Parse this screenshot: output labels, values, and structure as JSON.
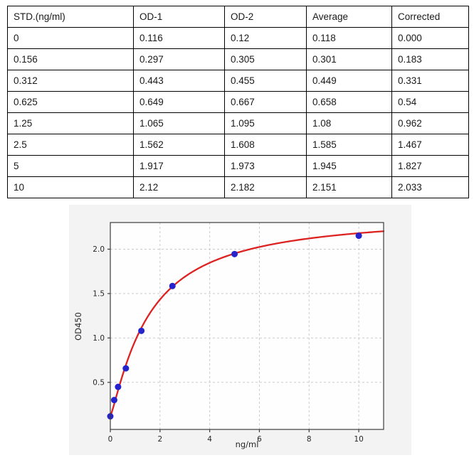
{
  "table": {
    "headers": [
      "STD.(ng/ml)",
      "OD-1",
      "OD-2",
      "Average",
      "Corrected"
    ],
    "rows": [
      [
        "0",
        "0.116",
        "0.12",
        "0.118",
        "0.000"
      ],
      [
        "0.156",
        "0.297",
        "0.305",
        "0.301",
        "0.183"
      ],
      [
        "0.312",
        "0.443",
        "0.455",
        "0.449",
        "0.331"
      ],
      [
        "0.625",
        "0.649",
        "0.667",
        "0.658",
        "0.54"
      ],
      [
        "1.25",
        "1.065",
        "1.095",
        "1.08",
        "0.962"
      ],
      [
        "2.5",
        "1.562",
        "1.608",
        "1.585",
        "1.467"
      ],
      [
        "5",
        "1.917",
        "1.973",
        "1.945",
        "1.827"
      ],
      [
        "10",
        "2.12",
        "2.182",
        "2.151",
        "2.033"
      ]
    ]
  },
  "chart_data": {
    "type": "scatter",
    "title": "",
    "xlabel": "ng/ml",
    "ylabel": "OD450",
    "x": [
      0,
      0.156,
      0.312,
      0.625,
      1.25,
      2.5,
      5,
      10
    ],
    "y": [
      0.118,
      0.301,
      0.449,
      0.658,
      1.08,
      1.585,
      1.945,
      2.151
    ],
    "fit_curve": {
      "model": "4PL",
      "a": 0.12,
      "d": 2.4,
      "c": 1.55,
      "b": 1.2
    },
    "xticks": [
      0,
      2,
      4,
      6,
      8,
      10
    ],
    "yticks": [
      0.5,
      1.0,
      1.5,
      2.0
    ],
    "xlim": [
      0,
      11
    ],
    "ylim": [
      -0.03,
      2.3
    ],
    "grid": true,
    "legend": "none",
    "colors": {
      "point": "#2423cc",
      "curve": "#dd2222",
      "figure_bg": "#f3f3f3",
      "plot_bg": "#fefefe",
      "grid": "#cbcbcb",
      "spine": "#3c3c3c",
      "tick_text": "#262626"
    }
  }
}
